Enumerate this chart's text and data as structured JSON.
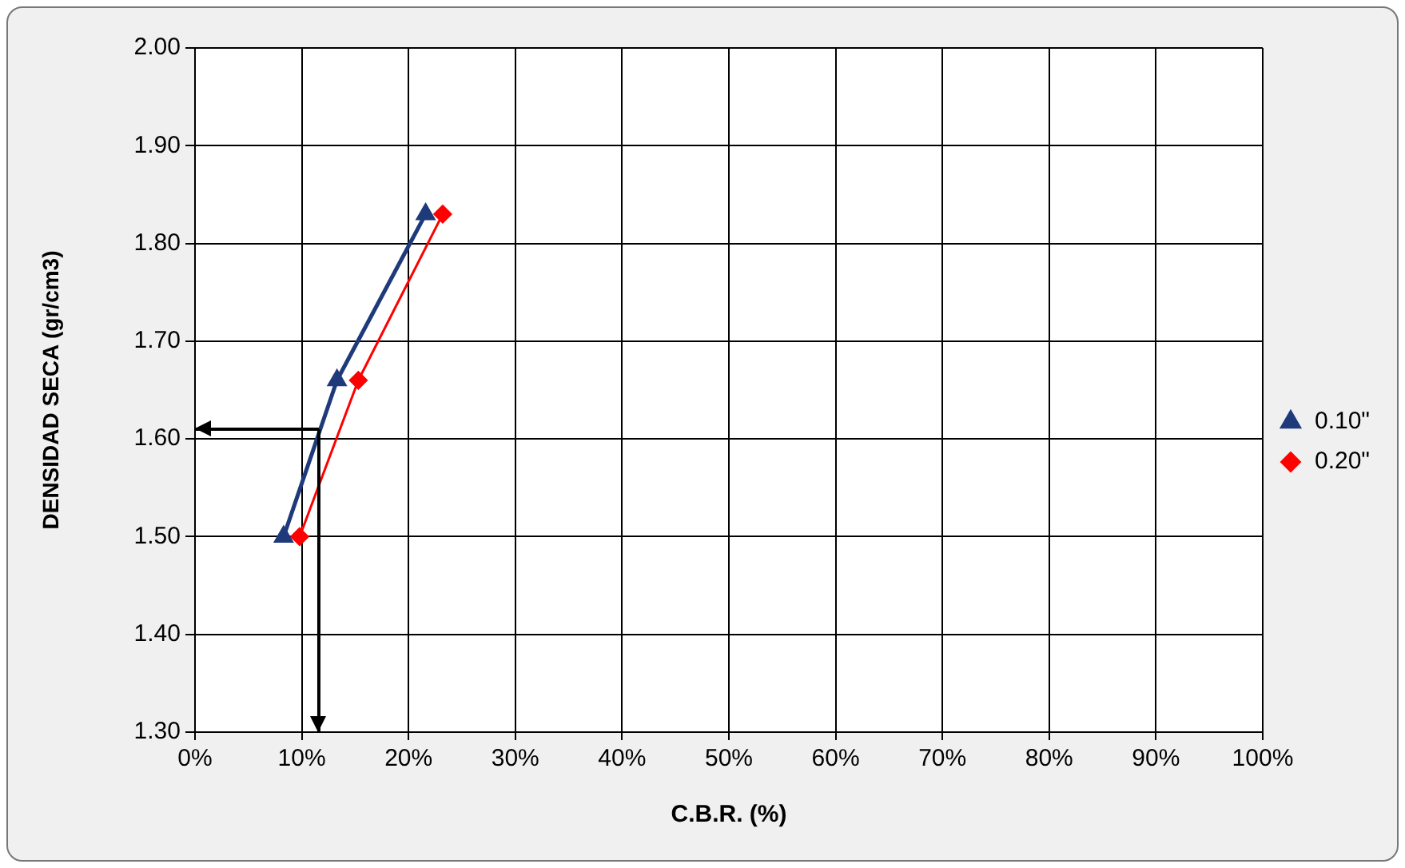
{
  "chart_data": {
    "type": "line",
    "xlabel": "C.B.R. (%)",
    "ylabel": "DENSIDAD SECA (gr/cm3)",
    "xlim": [
      0,
      100
    ],
    "xticks": [
      {
        "value": 0,
        "label": "0%"
      },
      {
        "value": 10,
        "label": "10%"
      },
      {
        "value": 20,
        "label": "20%"
      },
      {
        "value": 30,
        "label": "30%"
      },
      {
        "value": 40,
        "label": "40%"
      },
      {
        "value": 50,
        "label": "50%"
      },
      {
        "value": 60,
        "label": "60%"
      },
      {
        "value": 70,
        "label": "70%"
      },
      {
        "value": 80,
        "label": "80%"
      },
      {
        "value": 90,
        "label": "90%"
      },
      {
        "value": 100,
        "label": "100%"
      }
    ],
    "ylim": [
      1.3,
      2.0
    ],
    "yticks": [
      {
        "value": 1.3,
        "label": "1.30"
      },
      {
        "value": 1.4,
        "label": "1.40"
      },
      {
        "value": 1.5,
        "label": "1.50"
      },
      {
        "value": 1.6,
        "label": "1.60"
      },
      {
        "value": 1.7,
        "label": "1.70"
      },
      {
        "value": 1.8,
        "label": "1.80"
      },
      {
        "value": 1.9,
        "label": "1.90"
      },
      {
        "value": 2.0,
        "label": "2.00"
      }
    ],
    "series": [
      {
        "name": "0.10\"",
        "color": "#1f3a7a",
        "marker": "triangle",
        "x": [
          8.3,
          13.3,
          21.6
        ],
        "values": [
          1.5,
          1.66,
          1.83
        ]
      },
      {
        "name": "0.20\"",
        "color": "#ff0000",
        "marker": "diamond",
        "x": [
          9.8,
          15.3,
          23.2
        ],
        "values": [
          1.5,
          1.66,
          1.83
        ]
      }
    ],
    "ref_lines": [
      {
        "axis": "x",
        "value": 11.6,
        "color": "#000000"
      },
      {
        "axis": "y",
        "value": 1.61,
        "color": "#000000"
      }
    ],
    "grid": true,
    "legend": "right",
    "line_style": "solid"
  }
}
